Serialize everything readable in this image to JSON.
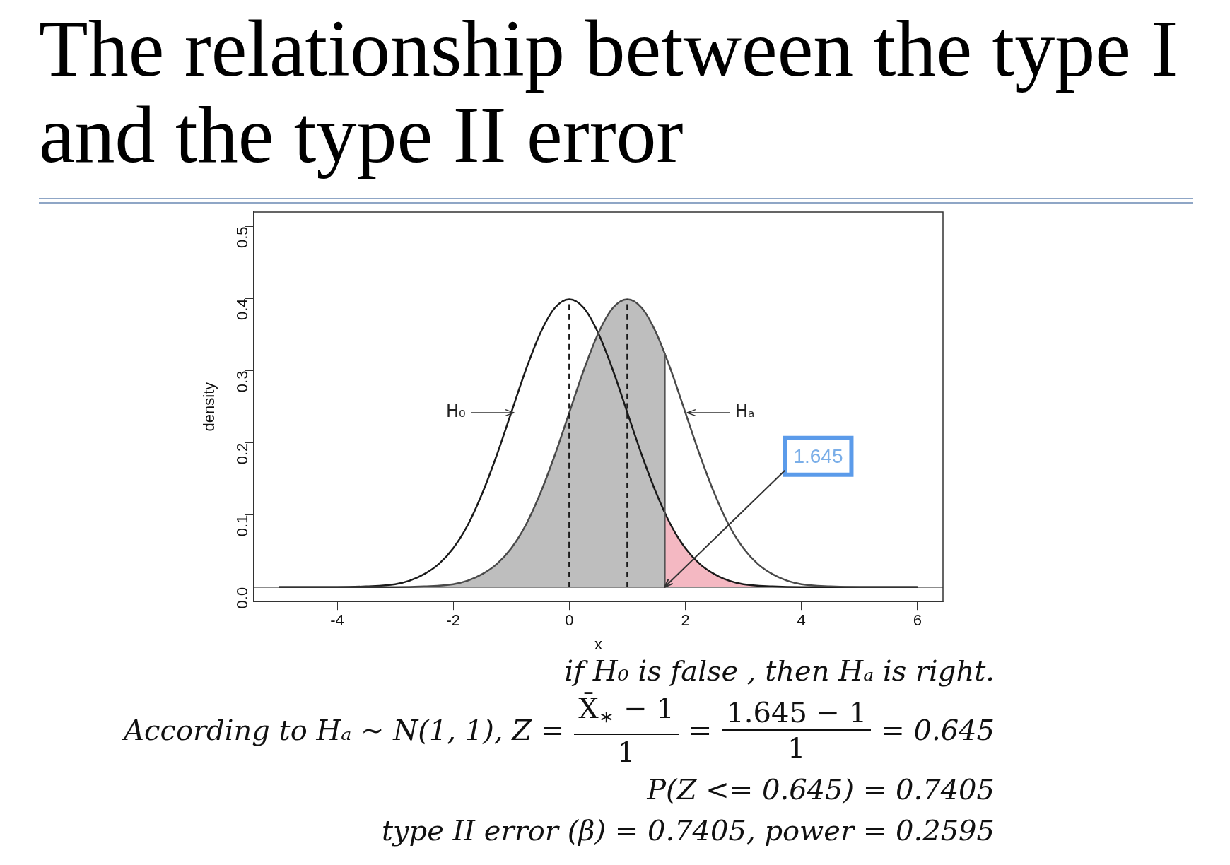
{
  "chart_data": {
    "type": "line",
    "title": "The relationship between the type I and the type II error",
    "xlabel": "x",
    "ylabel": "density",
    "xlim": [
      -5.44,
      6.44
    ],
    "ylim": [
      -0.02,
      0.52
    ],
    "xticks": [
      -4,
      -2,
      0,
      2,
      4,
      6
    ],
    "yticks": [
      {
        "value": 0,
        "label": "0.0"
      },
      0.1,
      0.2,
      0.3,
      0.4,
      0.5
    ],
    "grid": false,
    "legend": false,
    "marker": "none",
    "series": [
      {
        "type": "area",
        "color": "#bebebe",
        "x": [
          -5,
          -4.5,
          -4,
          -3.5,
          -3,
          -2.5,
          -2,
          -1.75,
          -1.5,
          -1.25,
          -1,
          -0.75,
          -0.5,
          -0.25,
          0,
          0.25,
          0.5,
          0.75,
          1,
          1.25,
          1.5,
          1.645
        ],
        "values": [
          0,
          0,
          0,
          0,
          0,
          0.001,
          0.004,
          0.009,
          0.018,
          0.032,
          0.054,
          0.086,
          0.13,
          0.183,
          0.242,
          0.301,
          0.352,
          0.387,
          0.399,
          0.387,
          0.352,
          0.324
        ]
      },
      {
        "type": "area",
        "color": "#f4b8c2",
        "x": [
          1.645,
          1.75,
          2,
          2.25,
          2.5,
          2.75,
          3,
          3.5,
          4,
          4.5,
          5,
          6
        ],
        "values": [
          0.103,
          0.086,
          0.054,
          0.032,
          0.018,
          0.009,
          0.004,
          0.001,
          0,
          0,
          0,
          0
        ]
      },
      {
        "type": "line",
        "color": "#1a1a1a",
        "x": [
          -5,
          -4.5,
          -4,
          -3.5,
          -3,
          -2.75,
          -2.5,
          -2.25,
          -2,
          -1.75,
          -1.5,
          -1.25,
          -1,
          -0.75,
          -0.5,
          -0.25,
          0,
          0.25,
          0.5,
          0.75,
          1,
          1.25,
          1.5,
          1.75,
          2,
          2.25,
          2.5,
          2.75,
          3,
          3.5,
          4,
          4.5,
          5,
          5.5,
          6
        ],
        "values": [
          0,
          0,
          0,
          0.001,
          0.004,
          0.009,
          0.018,
          0.032,
          0.054,
          0.086,
          0.13,
          0.183,
          0.242,
          0.301,
          0.352,
          0.387,
          0.399,
          0.387,
          0.352,
          0.301,
          0.242,
          0.183,
          0.13,
          0.086,
          0.054,
          0.032,
          0.018,
          0.009,
          0.004,
          0.001,
          0,
          0,
          0,
          0,
          0
        ]
      },
      {
        "type": "line",
        "color": "#4a4a4a",
        "x": [
          -5,
          -4.5,
          -4,
          -3.5,
          -3,
          -2.5,
          -2,
          -1.75,
          -1.5,
          -1.25,
          -1,
          -0.75,
          -0.5,
          -0.25,
          0,
          0.25,
          0.5,
          0.75,
          1,
          1.25,
          1.5,
          1.75,
          2,
          2.25,
          2.5,
          2.75,
          3,
          3.25,
          3.5,
          3.75,
          4,
          4.5,
          5,
          5.5,
          6
        ],
        "values": [
          0,
          0,
          0,
          0,
          0,
          0.001,
          0.004,
          0.009,
          0.018,
          0.032,
          0.054,
          0.086,
          0.13,
          0.183,
          0.242,
          0.301,
          0.352,
          0.387,
          0.399,
          0.387,
          0.352,
          0.301,
          0.242,
          0.183,
          0.13,
          0.086,
          0.054,
          0.032,
          0.018,
          0.009,
          0.004,
          0.001,
          0,
          0,
          0
        ]
      },
      {
        "type": "line",
        "color": "#1a1a1a",
        "line_style": "dashed",
        "x": [
          0,
          0
        ],
        "values": [
          0,
          0.399
        ]
      },
      {
        "type": "line",
        "color": "#1a1a1a",
        "line_style": "dashed",
        "x": [
          1,
          1
        ],
        "values": [
          0,
          0.399
        ]
      },
      {
        "type": "line",
        "color": "#555555",
        "x": [
          1.645,
          1.645
        ],
        "values": [
          0,
          0.324
        ]
      }
    ],
    "ref_lines": [
      {
        "axis": "y",
        "value": 0,
        "color": "#1a1a1a"
      }
    ],
    "annotations": [
      {
        "text": "H₀",
        "x": -0.96,
        "y": 0.242
      },
      {
        "text": "Hₐ",
        "x": 2.03,
        "y": 0.242
      },
      {
        "text": "1.645",
        "x": 1.645,
        "y": 0
      },
      "if H₀ is false , then Hₐ is right.",
      "According to Hₐ  ∼  N(1, 1),  Z =",
      "X̄$_{∗}$ − 1",
      "1",
      "=",
      "1.645 − 1",
      "1",
      "= 0.645",
      "P(Z <= 0.645) = 0.7405",
      "type II error (β) = 0.7405,  power = 0.2595"
    ]
  }
}
